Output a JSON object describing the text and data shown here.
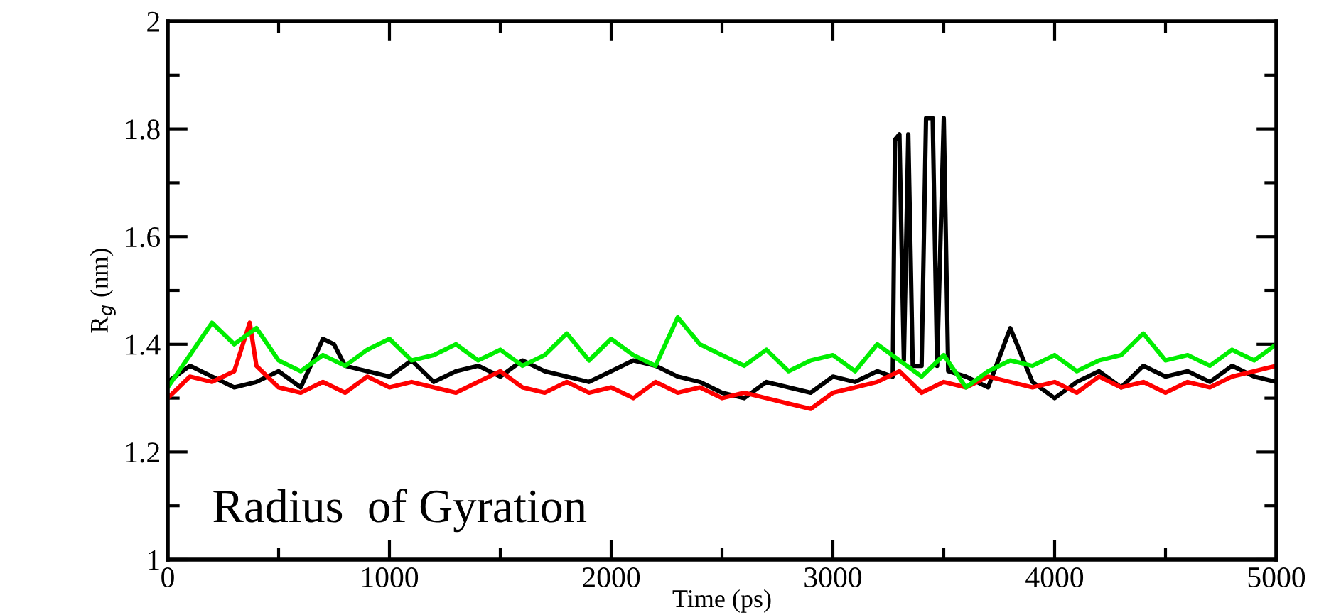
{
  "chart_data": {
    "type": "line",
    "xlabel": "Time (ps)",
    "ylabel": "R$_{g}$ (nm)",
    "xlim": [
      0,
      5000
    ],
    "ylim": [
      1,
      2
    ],
    "xticks": [
      0,
      1000,
      2000,
      3000,
      4000,
      5000
    ],
    "yticks": [
      1,
      1.2,
      1.4,
      1.6,
      1.8,
      2
    ],
    "grid": false,
    "legend": false,
    "marker": "none",
    "line_style": "solid",
    "annotations": [
      "Radius  of Gyration"
    ],
    "series": [
      {
        "color": "#000000",
        "x": [
          0,
          100,
          200,
          300,
          400,
          500,
          600,
          700,
          750,
          800,
          900,
          1000,
          1100,
          1200,
          1300,
          1400,
          1500,
          1600,
          1700,
          1800,
          1900,
          2000,
          2100,
          2200,
          2300,
          2400,
          2500,
          2600,
          2700,
          2800,
          2900,
          3000,
          3100,
          3200,
          3270,
          3280,
          3300,
          3320,
          3340,
          3360,
          3400,
          3420,
          3450,
          3470,
          3500,
          3520,
          3600,
          3700,
          3800,
          3850,
          3900,
          4000,
          4100,
          4200,
          4300,
          4400,
          4500,
          4600,
          4700,
          4800,
          4900,
          5000
        ],
        "values": [
          1.33,
          1.36,
          1.34,
          1.32,
          1.33,
          1.35,
          1.32,
          1.41,
          1.4,
          1.36,
          1.35,
          1.34,
          1.37,
          1.33,
          1.35,
          1.36,
          1.34,
          1.37,
          1.35,
          1.34,
          1.33,
          1.35,
          1.37,
          1.36,
          1.34,
          1.33,
          1.31,
          1.3,
          1.33,
          1.32,
          1.31,
          1.34,
          1.33,
          1.35,
          1.34,
          1.78,
          1.79,
          1.37,
          1.79,
          1.36,
          1.36,
          1.82,
          1.82,
          1.36,
          1.82,
          1.35,
          1.34,
          1.32,
          1.43,
          1.38,
          1.33,
          1.3,
          1.33,
          1.35,
          1.32,
          1.36,
          1.34,
          1.35,
          1.33,
          1.36,
          1.34,
          1.33
        ]
      },
      {
        "color": "#ff0000",
        "x": [
          0,
          100,
          200,
          300,
          370,
          400,
          500,
          600,
          700,
          800,
          900,
          1000,
          1100,
          1200,
          1300,
          1400,
          1500,
          1600,
          1700,
          1800,
          1900,
          2000,
          2100,
          2200,
          2300,
          2400,
          2500,
          2600,
          2700,
          2800,
          2900,
          3000,
          3100,
          3200,
          3300,
          3400,
          3500,
          3600,
          3700,
          3800,
          3900,
          4000,
          4100,
          4200,
          4300,
          4400,
          4500,
          4600,
          4700,
          4800,
          4900,
          5000
        ],
        "values": [
          1.3,
          1.34,
          1.33,
          1.35,
          1.44,
          1.36,
          1.32,
          1.31,
          1.33,
          1.31,
          1.34,
          1.32,
          1.33,
          1.32,
          1.31,
          1.33,
          1.35,
          1.32,
          1.31,
          1.33,
          1.31,
          1.32,
          1.3,
          1.33,
          1.31,
          1.32,
          1.3,
          1.31,
          1.3,
          1.29,
          1.28,
          1.31,
          1.32,
          1.33,
          1.35,
          1.31,
          1.33,
          1.32,
          1.34,
          1.33,
          1.32,
          1.33,
          1.31,
          1.34,
          1.32,
          1.33,
          1.31,
          1.33,
          1.32,
          1.34,
          1.35,
          1.36
        ]
      },
      {
        "color": "#00ee00",
        "x": [
          0,
          100,
          200,
          300,
          400,
          500,
          600,
          700,
          800,
          900,
          1000,
          1100,
          1200,
          1300,
          1400,
          1500,
          1600,
          1700,
          1800,
          1900,
          2000,
          2100,
          2200,
          2300,
          2400,
          2500,
          2600,
          2700,
          2800,
          2900,
          3000,
          3100,
          3200,
          3300,
          3400,
          3500,
          3600,
          3700,
          3800,
          3900,
          4000,
          4100,
          4200,
          4300,
          4400,
          4500,
          4600,
          4700,
          4800,
          4900,
          5000
        ],
        "values": [
          1.32,
          1.38,
          1.44,
          1.4,
          1.43,
          1.37,
          1.35,
          1.38,
          1.36,
          1.39,
          1.41,
          1.37,
          1.38,
          1.4,
          1.37,
          1.39,
          1.36,
          1.38,
          1.42,
          1.37,
          1.41,
          1.38,
          1.36,
          1.45,
          1.4,
          1.38,
          1.36,
          1.39,
          1.35,
          1.37,
          1.38,
          1.35,
          1.4,
          1.37,
          1.34,
          1.38,
          1.32,
          1.35,
          1.37,
          1.36,
          1.38,
          1.35,
          1.37,
          1.38,
          1.42,
          1.37,
          1.38,
          1.36,
          1.39,
          1.37,
          1.4
        ]
      }
    ]
  }
}
